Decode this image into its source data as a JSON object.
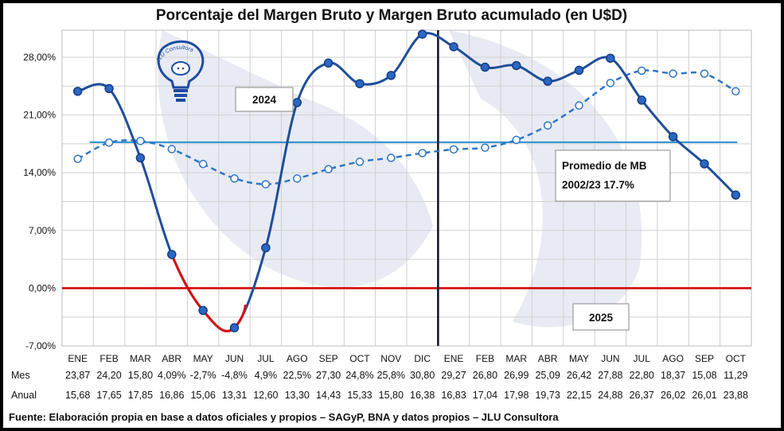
{
  "chart_data": {
    "type": "line",
    "title": "Porcentaje del Margen Bruto y Margen Bruto acumulado (en U$D)",
    "categories": [
      "ENE",
      "FEB",
      "MAR",
      "ABR",
      "MAY",
      "JUN",
      "JUL",
      "AGO",
      "SEP",
      "OCT",
      "NOV",
      "DIC",
      "ENE",
      "FEB",
      "MAR",
      "ABR",
      "MAY",
      "JUN",
      "JUL",
      "AGO",
      "SEP",
      "OCT"
    ],
    "y_tick_labels": [
      "28,00%",
      "21,00%",
      "14,00%",
      "7,00%",
      "0,00%",
      "-7,00%"
    ],
    "y_ticks": [
      28,
      21,
      14,
      7,
      0,
      -7
    ],
    "ylim": [
      -7,
      31
    ],
    "series": [
      {
        "name": "Mes",
        "style": "solid",
        "color": "#1f4e9a",
        "values": [
          23.87,
          24.2,
          15.8,
          4.09,
          -2.7,
          -4.8,
          4.9,
          22.5,
          27.3,
          24.8,
          25.8,
          30.8,
          29.27,
          26.8,
          26.99,
          25.09,
          26.42,
          27.88,
          22.8,
          18.37,
          15.08,
          11.29
        ],
        "labels": [
          "23,87",
          "24,20",
          "15,80",
          "4,09%",
          "-2,7%",
          "-4,8%",
          "4,9%",
          "22,5%",
          "27,30",
          "24,8%",
          "25,8%",
          "30,80",
          "29,27",
          "26,80",
          "26,99",
          "25,09",
          "26,42",
          "27,88",
          "22,80",
          "18,37",
          "15,08",
          "11,29"
        ]
      },
      {
        "name": "Anual",
        "style": "dashed",
        "color": "#2e75c6",
        "values": [
          15.68,
          17.65,
          17.85,
          16.86,
          15.06,
          13.31,
          12.6,
          13.3,
          14.43,
          15.33,
          15.8,
          16.38,
          16.83,
          17.04,
          17.98,
          19.73,
          22.15,
          24.88,
          26.37,
          26.02,
          26.01,
          23.88
        ],
        "labels": [
          "15,68",
          "17,65",
          "17,85",
          "16,86",
          "15,06",
          "13,31",
          "12,60",
          "13,30",
          "14,43",
          "15,33",
          "15,80",
          "16,38",
          "16,83",
          "17,04",
          "17,98",
          "19,73",
          "22,15",
          "24,88",
          "26,37",
          "26,02",
          "26,01",
          "23,88"
        ]
      }
    ],
    "average_line": {
      "label_line1": "Promedio de MB",
      "label_line2": "2002/23 17.7%",
      "value": 17.7,
      "color": "#2a8fd0"
    },
    "zero_line_color": "#d40000",
    "negative_segment_color": "#d80f0f",
    "year_labels": [
      "2024",
      "2025"
    ],
    "divider_after_category": "DIC",
    "grid": true
  },
  "table": {
    "row1_label": "Mes",
    "row2_label": "Anual"
  },
  "logo": {
    "text": "JLU Consultora"
  },
  "source": "Fuente: Elaboración propia en base a datos oficiales y propios – SAGyP, BNA y datos propios – JLU Consultora"
}
